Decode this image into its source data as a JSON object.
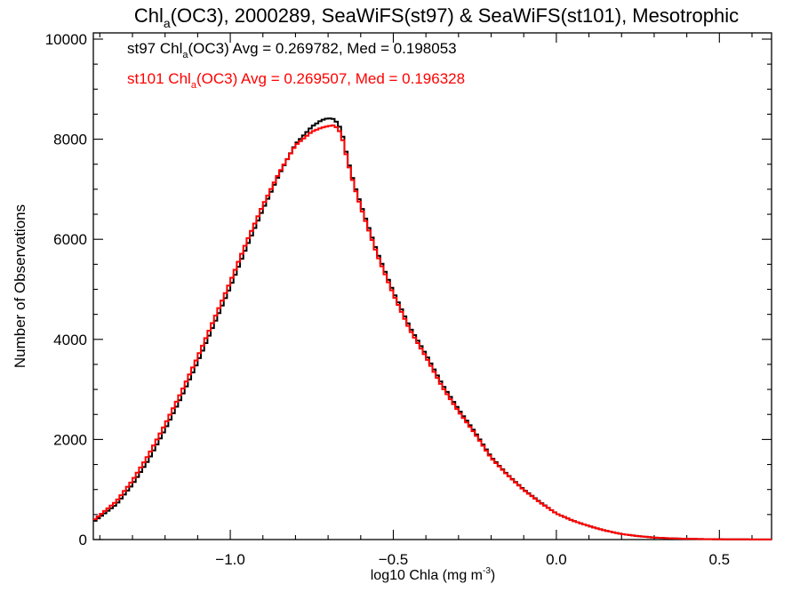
{
  "chart_data": {
    "type": "line",
    "title": {
      "prefix": "Chl",
      "sub": "a",
      "rest": "(OC3), 2000289, SeaWiFS(st97) & SeaWiFS(st101), Mesotrophic"
    },
    "xlabel": {
      "main": "log10 Chla (mg m",
      "sup": "-3",
      "close": ")"
    },
    "ylabel": "Number of Observations",
    "xlim": [
      -1.42,
      0.66
    ],
    "ylim": [
      0,
      10000
    ],
    "x_ticks": [
      -1.0,
      -0.5,
      0.0,
      0.5
    ],
    "x_tick_labels": [
      "−1.0",
      "−0.5",
      "0.0",
      "0.5"
    ],
    "y_ticks": [
      0,
      2000,
      4000,
      6000,
      8000,
      10000
    ],
    "y_tick_labels": [
      "0",
      "2000",
      "4000",
      "6000",
      "8000",
      "10000"
    ],
    "grid": false,
    "legend_position": "top-left",
    "series": [
      {
        "name": "st97",
        "color": "#000000",
        "stats_prefix": "st97 Chl",
        "stats_sub": "a",
        "stats_rest": "(OC3) Avg = 0.269782, Med = 0.198053",
        "x": [
          -1.42,
          -1.35,
          -1.3,
          -1.25,
          -1.2,
          -1.15,
          -1.1,
          -1.05,
          -1.0,
          -0.95,
          -0.9,
          -0.85,
          -0.8,
          -0.75,
          -0.72,
          -0.7,
          -0.68,
          -0.66,
          -0.64,
          -0.62,
          -0.6,
          -0.55,
          -0.5,
          -0.45,
          -0.4,
          -0.35,
          -0.3,
          -0.25,
          -0.2,
          -0.15,
          -0.1,
          -0.05,
          0.0,
          0.05,
          0.1,
          0.15,
          0.2,
          0.25,
          0.3,
          0.35,
          0.4,
          0.45,
          0.5,
          0.55,
          0.6,
          0.66
        ],
        "y": [
          350,
          700,
          1100,
          1600,
          2200,
          2850,
          3550,
          4300,
          5050,
          5850,
          6600,
          7300,
          7900,
          8250,
          8380,
          8420,
          8400,
          8200,
          7600,
          7100,
          6700,
          5750,
          4950,
          4250,
          3700,
          3100,
          2600,
          2150,
          1650,
          1300,
          1000,
          750,
          520,
          380,
          270,
          180,
          110,
          70,
          40,
          25,
          15,
          10,
          6,
          4,
          3,
          2
        ]
      },
      {
        "name": "st101",
        "color": "#ff0000",
        "stats_prefix": "st101 Chl",
        "stats_sub": "a",
        "stats_rest": "(OC3) Avg = 0.269507, Med = 0.196328",
        "x": [
          -1.42,
          -1.35,
          -1.3,
          -1.25,
          -1.2,
          -1.15,
          -1.1,
          -1.05,
          -1.0,
          -0.95,
          -0.9,
          -0.85,
          -0.8,
          -0.75,
          -0.72,
          -0.7,
          -0.68,
          -0.66,
          -0.64,
          -0.62,
          -0.6,
          -0.55,
          -0.5,
          -0.45,
          -0.4,
          -0.35,
          -0.3,
          -0.25,
          -0.2,
          -0.15,
          -0.1,
          -0.05,
          0.0,
          0.05,
          0.1,
          0.15,
          0.2,
          0.25,
          0.3,
          0.35,
          0.4,
          0.45,
          0.5,
          0.55,
          0.6,
          0.66
        ],
        "y": [
          380,
          760,
          1180,
          1700,
          2300,
          2950,
          3650,
          4400,
          5150,
          5950,
          6680,
          7330,
          7880,
          8150,
          8230,
          8260,
          8280,
          8120,
          7560,
          7060,
          6650,
          5700,
          4900,
          4200,
          3650,
          3050,
          2560,
          2120,
          1630,
          1290,
          990,
          740,
          520,
          380,
          270,
          180,
          110,
          70,
          40,
          25,
          15,
          10,
          6,
          4,
          3,
          2
        ]
      }
    ]
  }
}
